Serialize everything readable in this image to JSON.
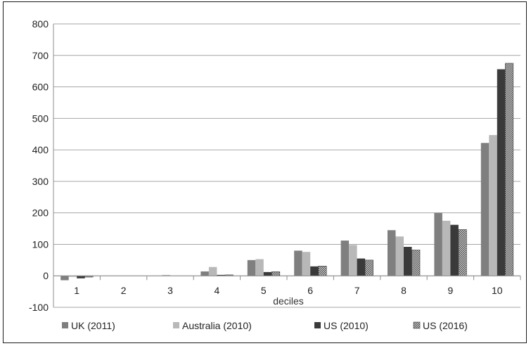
{
  "chart_data": {
    "type": "bar",
    "categories": [
      "1",
      "2",
      "3",
      "4",
      "5",
      "6",
      "7",
      "8",
      "9",
      "10"
    ],
    "xlabel": "deciles",
    "ylim": [
      -100,
      800
    ],
    "yticks": [
      -100,
      0,
      100,
      200,
      300,
      400,
      500,
      600,
      700,
      800
    ],
    "grid": true,
    "legend_position": "bottom",
    "series": [
      {
        "name": "UK (2011)",
        "color": "#7f7f7f",
        "pattern": "solid",
        "values": [
          -14,
          0,
          0,
          14,
          50,
          80,
          112,
          145,
          200,
          422
        ]
      },
      {
        "name": "Australia (2010)",
        "color": "#b8b8b8",
        "pattern": "solid",
        "values": [
          -3,
          0,
          3,
          28,
          53,
          76,
          98,
          125,
          175,
          447
        ]
      },
      {
        "name": "US (2010)",
        "color": "#3a3a3a",
        "pattern": "solid",
        "values": [
          -8,
          0,
          0,
          3,
          12,
          30,
          55,
          92,
          162,
          656
        ]
      },
      {
        "name": "US (2016)",
        "color": "#8a8a8a",
        "pattern": "checker",
        "values": [
          -4,
          0,
          0,
          3,
          13,
          31,
          50,
          82,
          147,
          675
        ]
      }
    ]
  }
}
